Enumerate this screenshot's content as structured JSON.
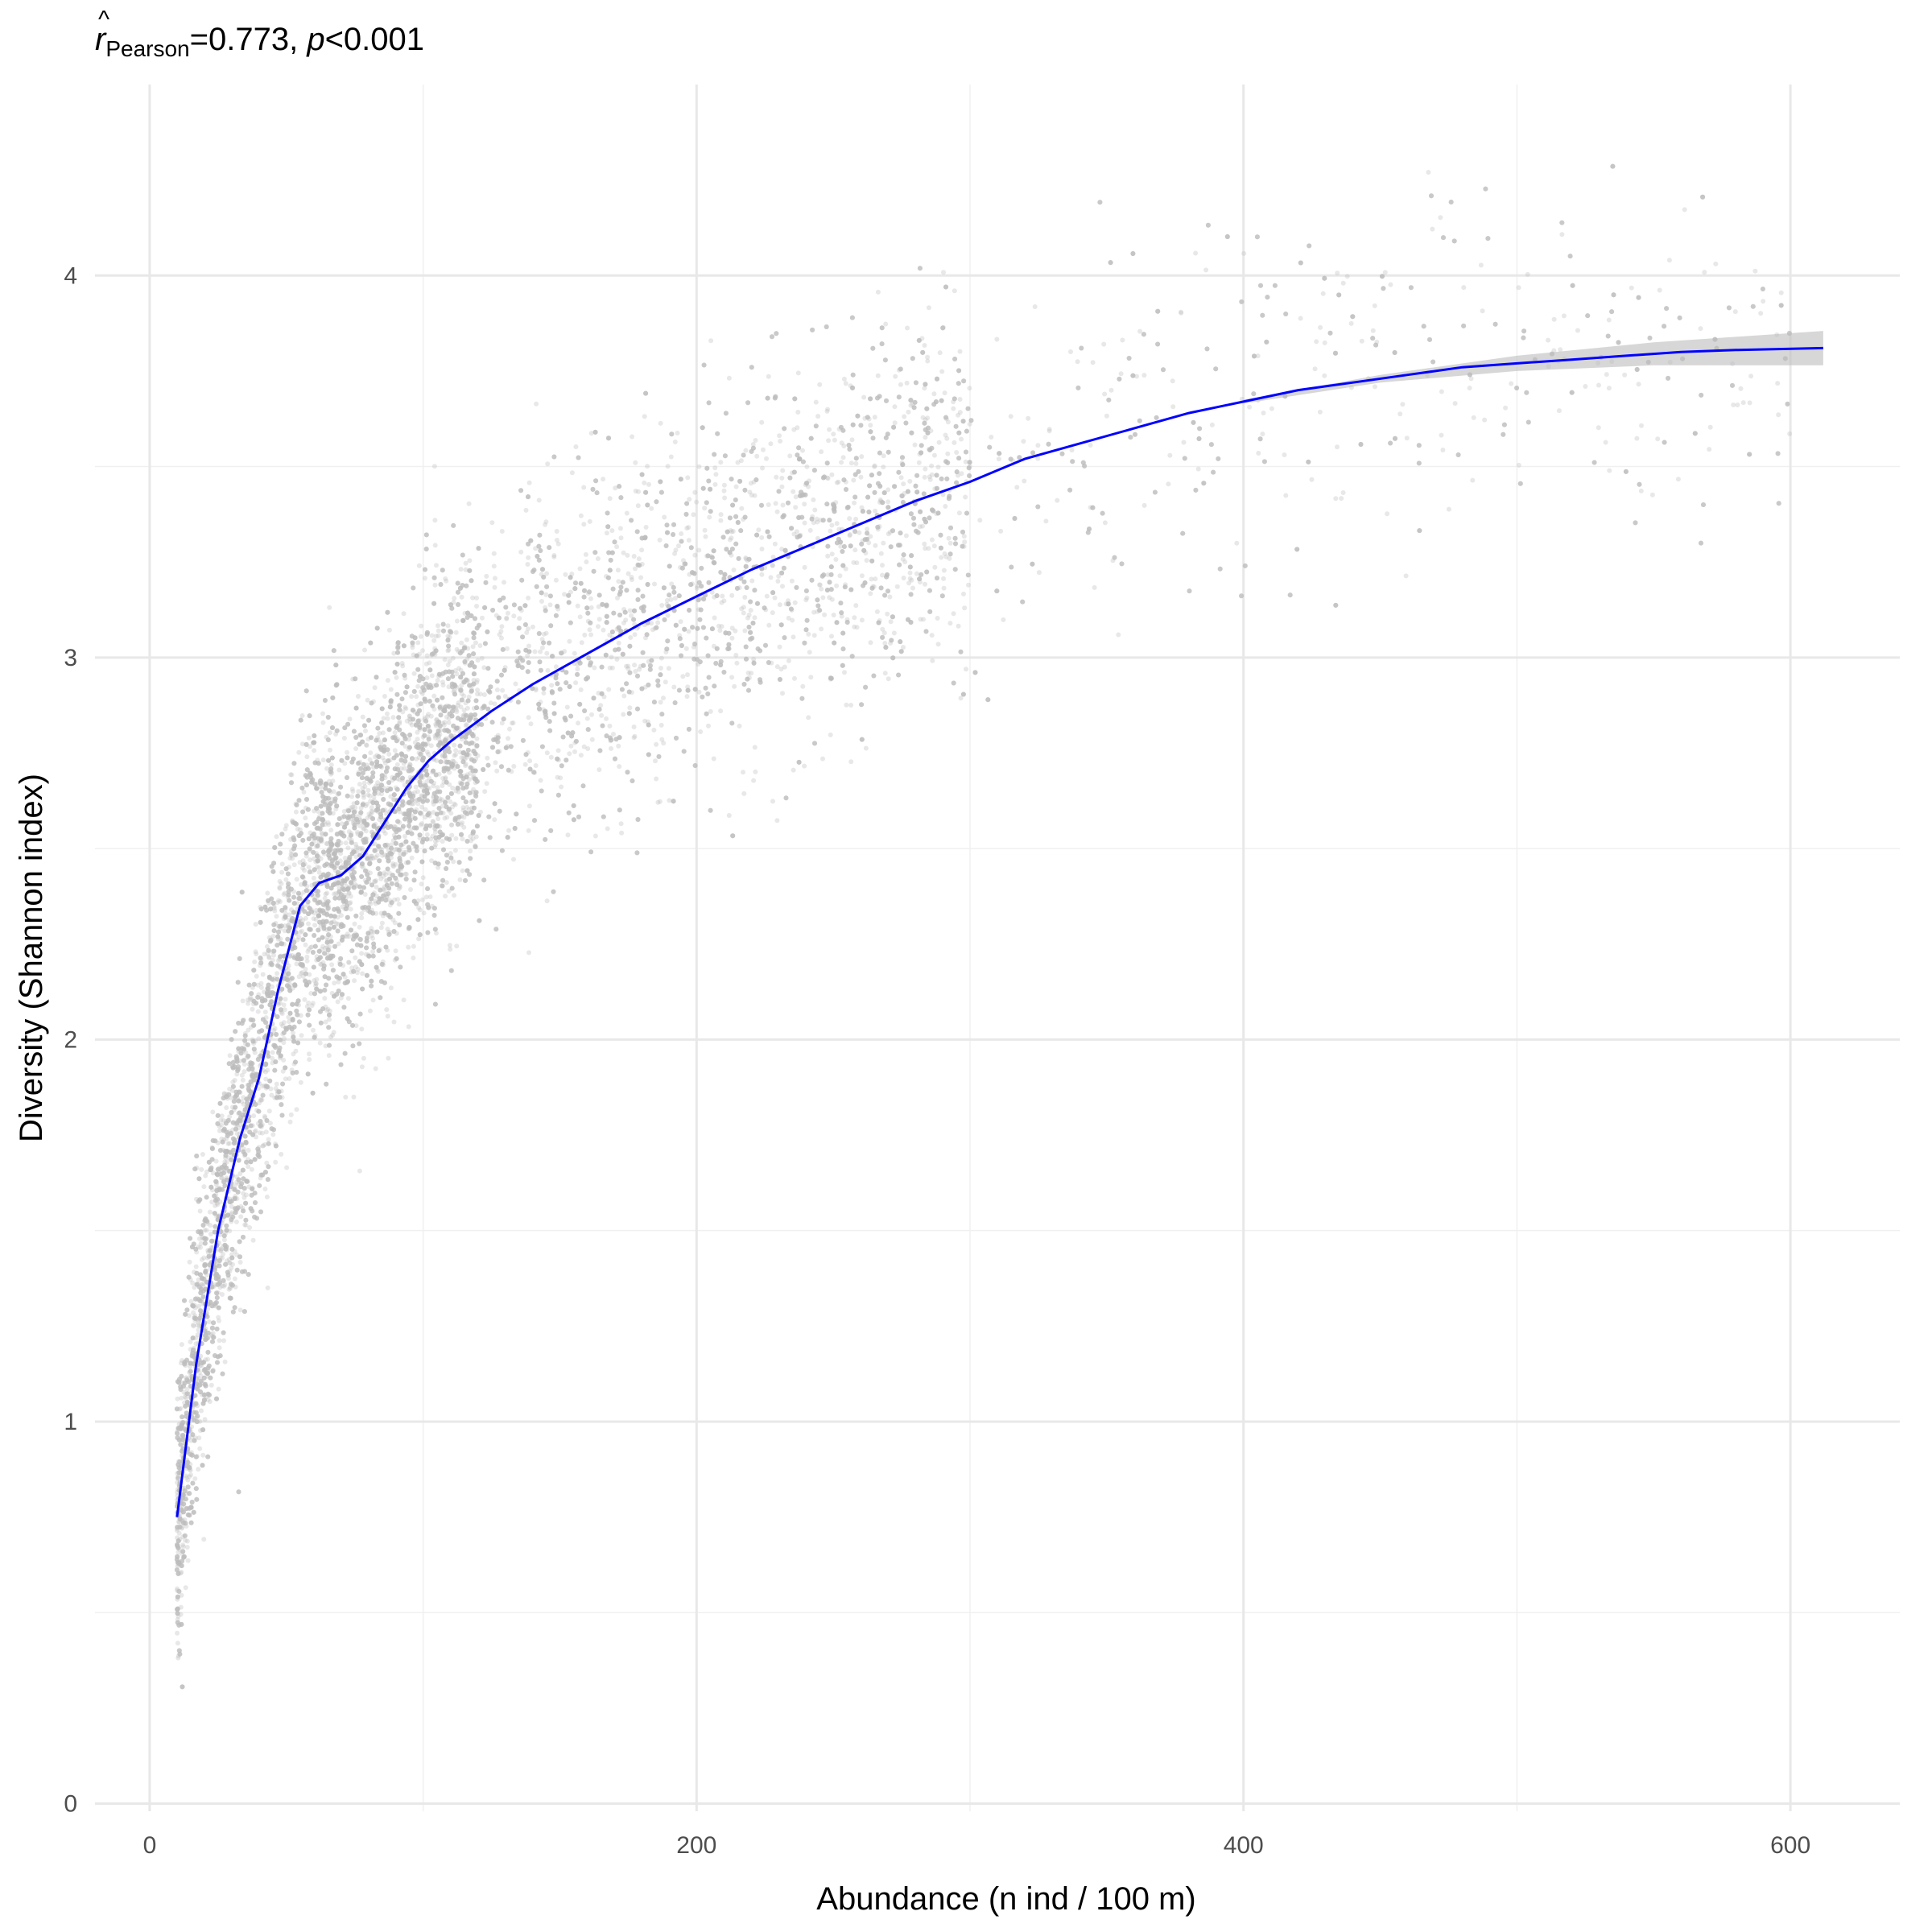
{
  "chart_data": {
    "type": "scatter",
    "subtitle": {
      "r_symbol": "r",
      "r_subscript": "Pearson",
      "r_value_text": "=0.773, ",
      "p_symbol": "p",
      "p_value_text": "<0.001"
    },
    "xlabel": "Abundance (n ind / 100 m)",
    "ylabel": "Diversity (Shannon index)",
    "xlim": [
      -20,
      640
    ],
    "ylim": [
      -0.02,
      4.5
    ],
    "x_ticks": [
      0,
      200,
      400,
      600
    ],
    "x_tick_labels": [
      "0",
      "200",
      "400",
      "600"
    ],
    "x_minor_ticks": [
      100,
      300,
      500
    ],
    "y_ticks": [
      0,
      1,
      2,
      3,
      4
    ],
    "y_tick_labels": [
      "0",
      "1",
      "2",
      "3",
      "4"
    ],
    "y_minor_ticks": [
      0.5,
      1.5,
      2.5,
      3.5
    ],
    "grid": true,
    "points_color": "#bebebe",
    "fit_line_color": "#0000ff",
    "ci_band_color": "#bdbdbd",
    "fit_line": {
      "x": [
        10,
        17,
        25,
        33,
        40,
        47,
        55,
        62,
        70,
        78,
        86,
        94,
        102,
        110,
        125,
        140,
        160,
        180,
        200,
        220,
        240,
        260,
        280,
        300,
        320,
        340,
        360,
        380,
        400,
        420,
        440,
        460,
        480,
        500,
        520,
        540,
        560,
        580,
        612
      ],
      "y": [
        0.75,
        1.15,
        1.5,
        1.74,
        1.9,
        2.13,
        2.35,
        2.41,
        2.43,
        2.48,
        2.57,
        2.66,
        2.73,
        2.78,
        2.86,
        2.93,
        3.01,
        3.09,
        3.16,
        3.23,
        3.29,
        3.35,
        3.41,
        3.46,
        3.52,
        3.56,
        3.6,
        3.64,
        3.67,
        3.7,
        3.72,
        3.74,
        3.76,
        3.77,
        3.78,
        3.79,
        3.8,
        3.805,
        3.81
      ]
    },
    "ci_band": {
      "x": [
        400,
        450,
        500,
        550,
        612
      ],
      "halfwidth": [
        0.005,
        0.01,
        0.02,
        0.03,
        0.045
      ]
    }
  }
}
